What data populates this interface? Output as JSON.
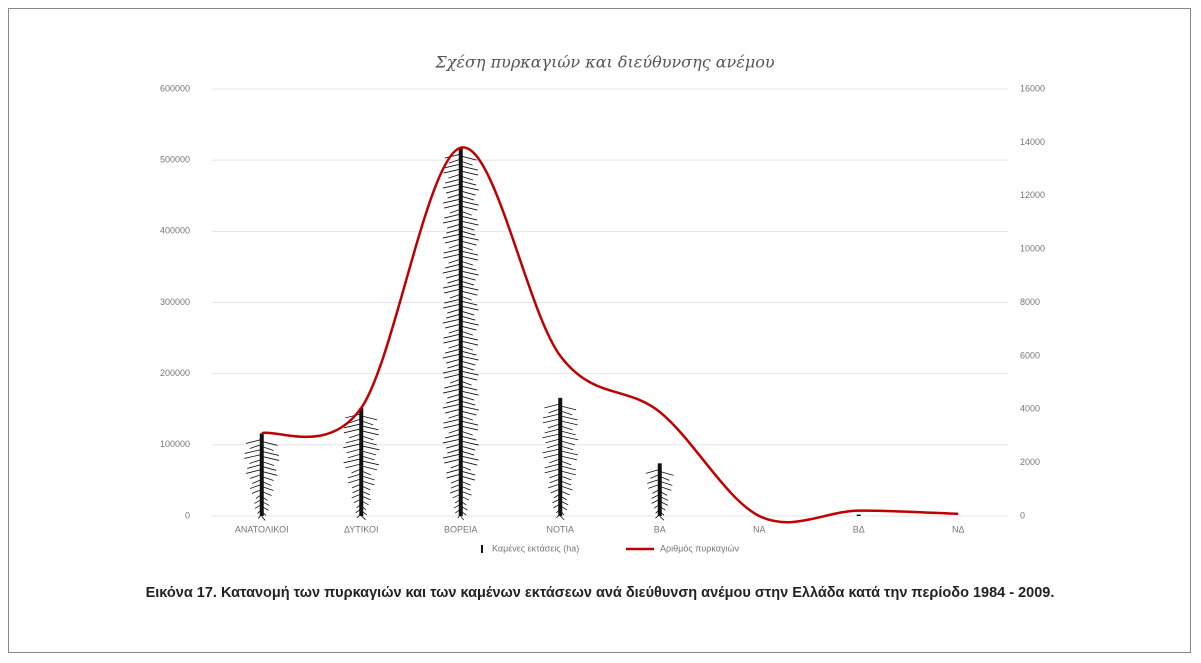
{
  "chart_data": {
    "type": "bar-line",
    "title": "Σχέση πυρκαγιών και διεύθυνσης ανέμου",
    "categories": [
      "ΑΝΑΤΟΛΙΚΟΙ",
      "ΔΥΤΙΚΟΙ",
      "ΒΟΡΕΙΑ",
      "ΝΟΤΙΑ",
      "ΒΑ",
      "ΝΑ",
      "ΒΔ",
      "ΝΔ"
    ],
    "series": [
      {
        "name": "Καμένες εκτάσεις (ha)",
        "color": "#111111",
        "type": "bar",
        "values": [
          116000,
          152000,
          517000,
          166000,
          74000,
          0,
          2000,
          0
        ]
      },
      {
        "name": "Αριθμός πυρκαγιών",
        "color": "#c00000",
        "type": "line",
        "axis": "y2",
        "values": [
          3100,
          4050,
          13800,
          6000,
          3900,
          0,
          200,
          80
        ]
      }
    ],
    "ylim": [
      0,
      600000
    ],
    "yticks": [
      0,
      100000,
      200000,
      300000,
      400000,
      500000,
      600000
    ],
    "y2lim": [
      0,
      16000
    ],
    "y2ticks": [
      0,
      2000,
      4000,
      6000,
      8000,
      10000,
      12000,
      14000,
      16000
    ],
    "grid": true,
    "caption": "Εικόνα 17. Κατανομή των πυρκαγιών και των καμένων εκτάσεων ανά διεύθυνση ανέμου στην Ελλάδα κατά την περίοδο 1984 - 2009."
  }
}
